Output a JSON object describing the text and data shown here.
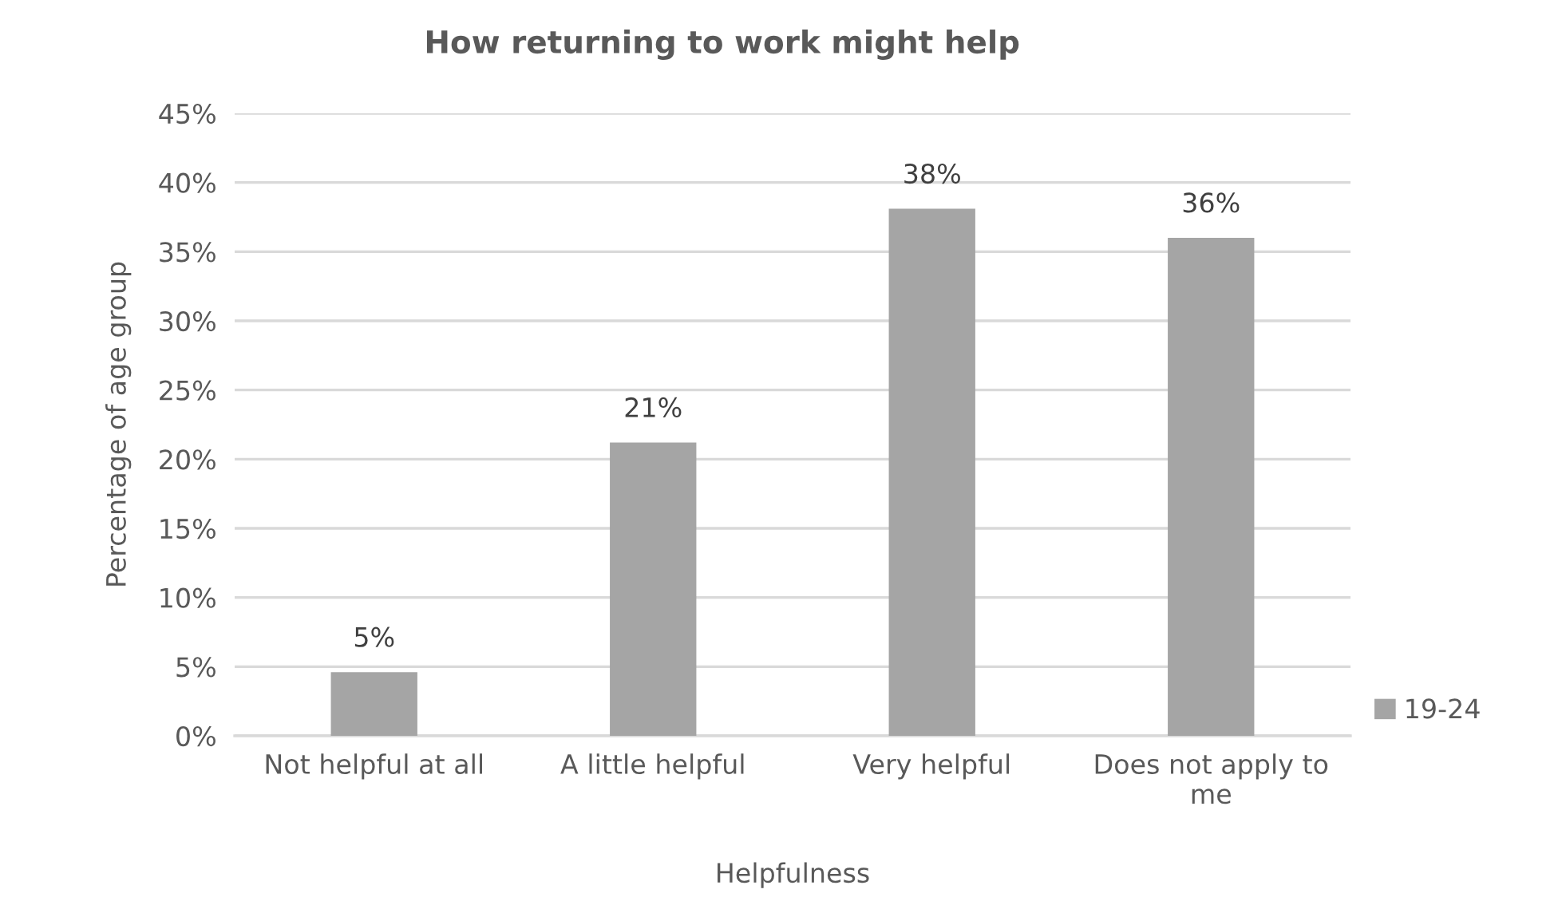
{
  "chart_data": {
    "type": "bar",
    "title": "How returning to work might help",
    "xlabel": "Helpfulness",
    "ylabel": "Percentage of age group",
    "categories": [
      "Not helpful at all",
      "A little helpful",
      "Very helpful",
      "Does not apply to\nme"
    ],
    "series": [
      {
        "name": "19-24",
        "color": "#a5a5a5",
        "values": [
          4.6,
          21.2,
          38.1,
          36.0
        ],
        "value_labels": [
          "5%",
          "21%",
          "38%",
          "36%"
        ]
      }
    ],
    "ylim": [
      0,
      45
    ],
    "yticks": [
      {
        "value": 0,
        "label": "0%"
      },
      {
        "value": 5,
        "label": "5%"
      },
      {
        "value": 10,
        "label": "10%"
      },
      {
        "value": 15,
        "label": "15%"
      },
      {
        "value": 20,
        "label": "20%"
      },
      {
        "value": 25,
        "label": "25%"
      },
      {
        "value": 30,
        "label": "30%"
      },
      {
        "value": 35,
        "label": "35%"
      },
      {
        "value": 40,
        "label": "40%"
      },
      {
        "value": 45,
        "label": "45%"
      }
    ],
    "grid": "y",
    "legend": "right"
  }
}
